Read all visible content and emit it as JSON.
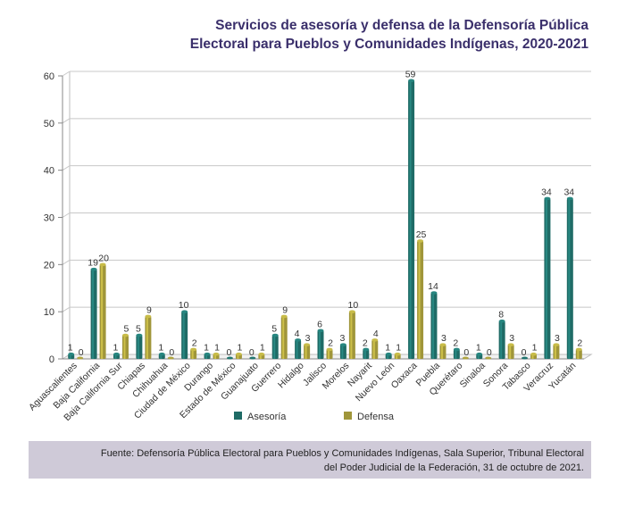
{
  "chart_data": {
    "type": "bar",
    "title": [
      "Servicios de asesoría y defensa de la Defensoría Pública",
      "Electoral para Pueblos y Comunidades Indígenas, 2020-2021"
    ],
    "xlabel": "",
    "ylabel": "",
    "ylim": [
      0,
      60
    ],
    "yticks": [
      0,
      10,
      20,
      30,
      40,
      50,
      60
    ],
    "grid": true,
    "legend_position": "bottom",
    "categories": [
      "Aguascalientes",
      "Baja California",
      "Baja California Sur",
      "Chiapas",
      "Chihuahua",
      "Ciudad de México",
      "Durango",
      "Estado de México",
      "Guanajuato",
      "Guerrero",
      "Hidalgo",
      "Jalisco",
      "Morelos",
      "Nayarit",
      "Nuevo León",
      "Oaxaca",
      "Puebla",
      "Querétaro",
      "Sinaloa",
      "Sonora",
      "Tabasco",
      "Veracruz",
      "Yucatán"
    ],
    "series": [
      {
        "name": "Asesoría",
        "color": "#1f6b66",
        "values": [
          1,
          19,
          1,
          5,
          1,
          10,
          1,
          0,
          0,
          5,
          4,
          6,
          3,
          2,
          1,
          59,
          14,
          2,
          1,
          8,
          0,
          34,
          34
        ]
      },
      {
        "name": "Defensa",
        "color": "#a0963a",
        "values": [
          0,
          20,
          5,
          9,
          0,
          2,
          1,
          1,
          1,
          9,
          3,
          2,
          10,
          4,
          1,
          25,
          3,
          0,
          0,
          3,
          1,
          3,
          2
        ]
      }
    ]
  },
  "source": [
    "Fuente: Defensoría Pública Electoral para Pueblos y Comunidades Indígenas, Sala Superior, Tribunal Electoral",
    "del Poder Judicial de la Federación, 31 de octubre de 2021."
  ]
}
